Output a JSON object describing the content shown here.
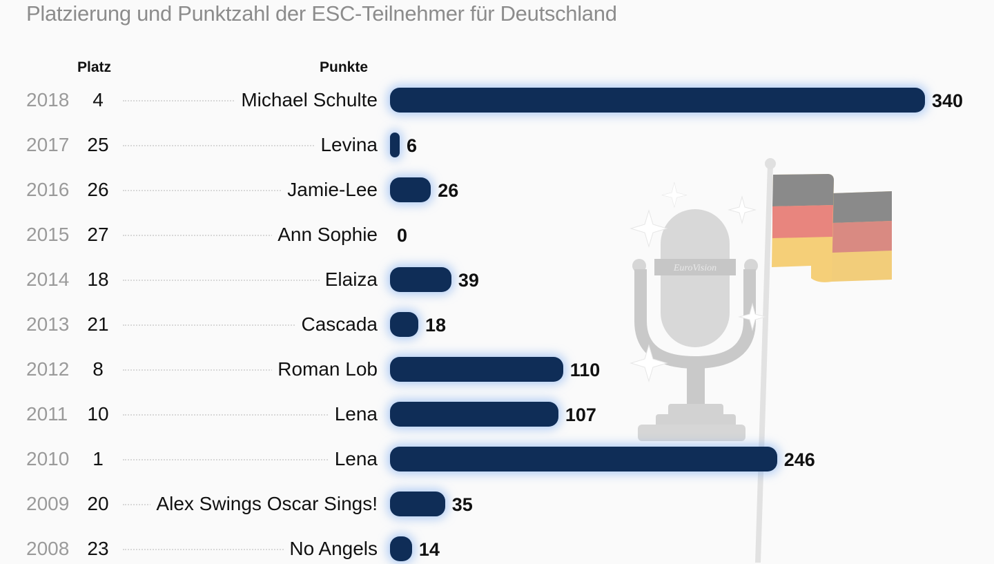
{
  "title": "Platzierung und Punktzahl der ESC-Teilnehmer für Deutschland",
  "headers": {
    "platz": "Platz",
    "punkte": "Punkte"
  },
  "colors": {
    "bar": "#0f2d57",
    "glow": "#78aaf0",
    "title": "#8c8c8c"
  },
  "rows": [
    {
      "year": "2018",
      "place": "4",
      "name": "Michael Schulte",
      "points": "340"
    },
    {
      "year": "2017",
      "place": "25",
      "name": "Levina",
      "points": "6"
    },
    {
      "year": "2016",
      "place": "26",
      "name": "Jamie-Lee",
      "points": "26"
    },
    {
      "year": "2015",
      "place": "27",
      "name": "Ann Sophie",
      "points": "0"
    },
    {
      "year": "2014",
      "place": "18",
      "name": "Elaiza",
      "points": "39"
    },
    {
      "year": "2013",
      "place": "21",
      "name": "Cascada",
      "points": "18"
    },
    {
      "year": "2012",
      "place": "8",
      "name": "Roman Lob",
      "points": "110"
    },
    {
      "year": "2011",
      "place": "10",
      "name": "Lena",
      "points": "107"
    },
    {
      "year": "2010",
      "place": "1",
      "name": "Lena",
      "points": "246"
    },
    {
      "year": "2009",
      "place": "20",
      "name": "Alex Swings Oscar Sings!",
      "points": "35"
    },
    {
      "year": "2008",
      "place": "23",
      "name": "No Angels",
      "points": "14"
    }
  ],
  "illustration": {
    "logo_text": "EuroVision",
    "icons": [
      "microphone-icon",
      "germany-flag-icon",
      "sparkle-icon"
    ]
  },
  "chart_data": {
    "type": "bar",
    "orientation": "horizontal",
    "title": "Platzierung und Punktzahl der ESC-Teilnehmer für Deutschland",
    "categories": [
      "2018 Michael Schulte",
      "2017 Levina",
      "2016 Jamie-Lee",
      "2015 Ann Sophie",
      "2014 Elaiza",
      "2013 Cascada",
      "2012 Roman Lob",
      "2011 Lena",
      "2010 Lena",
      "2009 Alex Swings Oscar Sings!",
      "2008 No Angels"
    ],
    "series": [
      {
        "name": "Punkte",
        "values": [
          340,
          6,
          26,
          0,
          39,
          18,
          110,
          107,
          246,
          35,
          14
        ]
      },
      {
        "name": "Platz",
        "values": [
          4,
          25,
          26,
          27,
          18,
          21,
          8,
          10,
          1,
          20,
          23
        ]
      }
    ],
    "xlabel": "Punkte",
    "ylabel": "",
    "xlim": [
      0,
      340
    ],
    "grid": false,
    "legend": "none"
  }
}
